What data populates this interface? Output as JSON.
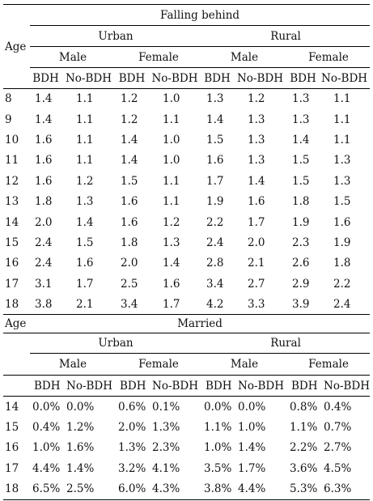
{
  "section1": {
    "title": "Falling behind",
    "age_label": "Age",
    "urban_label": "Urban",
    "rural_label": "Rural",
    "male_label": "Male",
    "female_label": "Female",
    "bdh_label": "BDH",
    "nobdh_label": "No-BDH",
    "rows": [
      {
        "age": "8",
        "values": [
          "1.4",
          "1.1",
          "1.2",
          "1.0",
          "1.3",
          "1.2",
          "1.3",
          "1.1"
        ]
      },
      {
        "age": "9",
        "values": [
          "1.4",
          "1.1",
          "1.2",
          "1.1",
          "1.4",
          "1.3",
          "1.3",
          "1.1"
        ]
      },
      {
        "age": "10",
        "values": [
          "1.6",
          "1.1",
          "1.4",
          "1.0",
          "1.5",
          "1.3",
          "1.4",
          "1.1"
        ]
      },
      {
        "age": "11",
        "values": [
          "1.6",
          "1.1",
          "1.4",
          "1.0",
          "1.6",
          "1.3",
          "1.5",
          "1.3"
        ]
      },
      {
        "age": "12",
        "values": [
          "1.6",
          "1.2",
          "1.5",
          "1.1",
          "1.7",
          "1.4",
          "1.5",
          "1.3"
        ]
      },
      {
        "age": "13",
        "values": [
          "1.8",
          "1.3",
          "1.6",
          "1.1",
          "1.9",
          "1.6",
          "1.8",
          "1.5"
        ]
      },
      {
        "age": "14",
        "values": [
          "2.0",
          "1.4",
          "1.6",
          "1.2",
          "2.2",
          "1.7",
          "1.9",
          "1.6"
        ]
      },
      {
        "age": "15",
        "values": [
          "2.4",
          "1.5",
          "1.8",
          "1.3",
          "2.4",
          "2.0",
          "2.3",
          "1.9"
        ]
      },
      {
        "age": "16",
        "values": [
          "2.4",
          "1.6",
          "2.0",
          "1.4",
          "2.8",
          "2.1",
          "2.6",
          "1.8"
        ]
      },
      {
        "age": "17",
        "values": [
          "3.1",
          "1.7",
          "2.5",
          "1.6",
          "3.4",
          "2.7",
          "2.9",
          "2.2"
        ]
      },
      {
        "age": "18",
        "values": [
          "3.8",
          "2.1",
          "3.4",
          "1.7",
          "4.2",
          "3.3",
          "3.9",
          "2.4"
        ]
      }
    ]
  },
  "section2": {
    "title": "Married",
    "age_label": "Age",
    "urban_label": "Urban",
    "rural_label": "Rural",
    "male_label": "Male",
    "female_label": "Female",
    "bdh_label": "BDH",
    "nobdh_label": "No-BDH",
    "rows": [
      {
        "age": "14",
        "values": [
          "0.0%",
          "0.0%",
          "0.6%",
          "0.1%",
          "0.0%",
          "0.0%",
          "0.8%",
          "0.4%"
        ]
      },
      {
        "age": "15",
        "values": [
          "0.4%",
          "1.2%",
          "2.0%",
          "1.3%",
          "1.1%",
          "1.0%",
          "1.1%",
          "0.7%"
        ]
      },
      {
        "age": "16",
        "values": [
          "1.0%",
          "1.6%",
          "1.3%",
          "2.3%",
          "1.0%",
          "1.4%",
          "2.2%",
          "2.7%"
        ]
      },
      {
        "age": "17",
        "values": [
          "4.4%",
          "1.4%",
          "3.2%",
          "4.1%",
          "3.5%",
          "1.7%",
          "3.6%",
          "4.5%"
        ]
      },
      {
        "age": "18",
        "values": [
          "6.5%",
          "2.5%",
          "6.0%",
          "4.3%",
          "3.8%",
          "4.4%",
          "5.3%",
          "6.3%"
        ]
      }
    ]
  }
}
